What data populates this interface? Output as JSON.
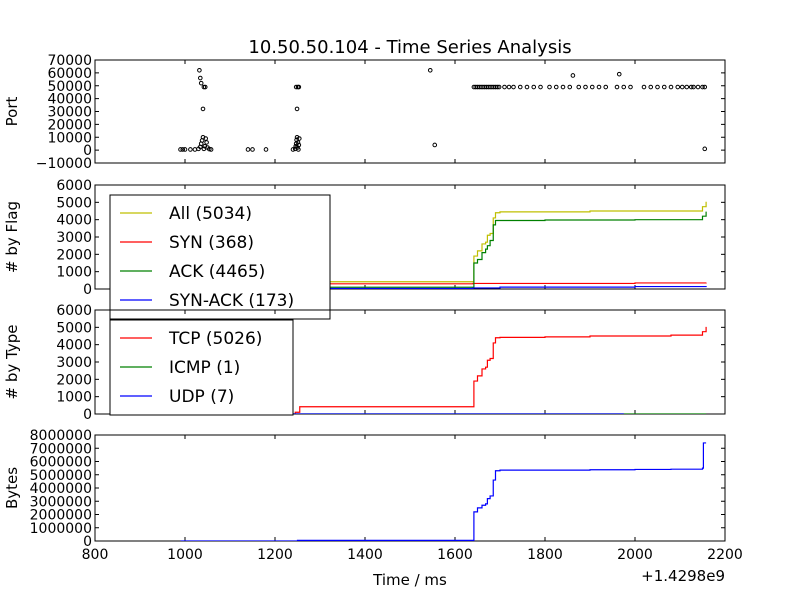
{
  "figure": {
    "title": "10.50.50.104 - Time Series Analysis",
    "xlabel": "Time / ms",
    "offset_text": "+1.4298e9",
    "xlim": [
      800,
      2200
    ],
    "xticks": [
      "800",
      "1000",
      "1200",
      "1400",
      "1600",
      "1800",
      "2000",
      "2200"
    ]
  },
  "chart_data": [
    {
      "type": "scatter",
      "ylabel": "Port",
      "ylim": [
        -10000,
        70000
      ],
      "yticks": [
        "−10000",
        "0",
        "10000",
        "20000",
        "30000",
        "40000",
        "50000",
        "60000",
        "70000"
      ],
      "points": [
        [
          990,
          500
        ],
        [
          995,
          500
        ],
        [
          1000,
          500
        ],
        [
          1012,
          500
        ],
        [
          1022,
          500
        ],
        [
          1030,
          1000
        ],
        [
          1034,
          2500
        ],
        [
          1036,
          5000
        ],
        [
          1038,
          7500
        ],
        [
          1040,
          10000
        ],
        [
          1042,
          1000
        ],
        [
          1044,
          3000
        ],
        [
          1046,
          9000
        ],
        [
          1048,
          6000
        ],
        [
          1050,
          2000
        ],
        [
          1054,
          800
        ],
        [
          1058,
          500
        ],
        [
          1032,
          62000
        ],
        [
          1034,
          56000
        ],
        [
          1036,
          52000
        ],
        [
          1040,
          32000
        ],
        [
          1042,
          49000
        ],
        [
          1045,
          49000
        ],
        [
          1140,
          500
        ],
        [
          1150,
          500
        ],
        [
          1180,
          500
        ],
        [
          1240,
          500
        ],
        [
          1245,
          1000
        ],
        [
          1246,
          3000
        ],
        [
          1247,
          5000
        ],
        [
          1248,
          8000
        ],
        [
          1249,
          10000
        ],
        [
          1250,
          2000
        ],
        [
          1251,
          6000
        ],
        [
          1252,
          500
        ],
        [
          1253,
          4000
        ],
        [
          1254,
          9000
        ],
        [
          1247,
          49000
        ],
        [
          1249,
          32000
        ],
        [
          1251,
          49000
        ],
        [
          1253,
          49000
        ],
        [
          1545,
          62000
        ],
        [
          1555,
          4000
        ],
        [
          1642,
          49000
        ],
        [
          1646,
          49000
        ],
        [
          1650,
          49000
        ],
        [
          1654,
          49000
        ],
        [
          1658,
          49000
        ],
        [
          1662,
          49000
        ],
        [
          1666,
          49000
        ],
        [
          1670,
          49000
        ],
        [
          1674,
          49000
        ],
        [
          1678,
          49000
        ],
        [
          1682,
          49000
        ],
        [
          1686,
          49000
        ],
        [
          1690,
          49000
        ],
        [
          1694,
          49000
        ],
        [
          1698,
          49000
        ],
        [
          1710,
          49000
        ],
        [
          1720,
          49000
        ],
        [
          1730,
          49000
        ],
        [
          1745,
          49000
        ],
        [
          1760,
          49000
        ],
        [
          1775,
          49000
        ],
        [
          1790,
          49000
        ],
        [
          1810,
          49000
        ],
        [
          1825,
          49000
        ],
        [
          1840,
          49000
        ],
        [
          1855,
          49000
        ],
        [
          1862,
          58000
        ],
        [
          1875,
          49000
        ],
        [
          1890,
          49000
        ],
        [
          1905,
          49000
        ],
        [
          1920,
          49000
        ],
        [
          1935,
          49000
        ],
        [
          1960,
          49000
        ],
        [
          1965,
          59000
        ],
        [
          1975,
          49000
        ],
        [
          1990,
          49000
        ],
        [
          2020,
          49000
        ],
        [
          2035,
          49000
        ],
        [
          2050,
          49000
        ],
        [
          2065,
          49000
        ],
        [
          2080,
          49000
        ],
        [
          2095,
          49000
        ],
        [
          2105,
          49000
        ],
        [
          2115,
          49000
        ],
        [
          2125,
          49000
        ],
        [
          2130,
          49000
        ],
        [
          2140,
          49000
        ],
        [
          2150,
          49000
        ],
        [
          2155,
          49000
        ],
        [
          2155,
          1000
        ]
      ]
    },
    {
      "type": "line",
      "ylabel": "# by Flag",
      "ylim": [
        0,
        6000
      ],
      "yticks": [
        "0",
        "1000",
        "2000",
        "3000",
        "4000",
        "5000",
        "6000"
      ],
      "legend_placement": "upper-left",
      "series": [
        {
          "name": "All (5034)",
          "color": "#bfbf00",
          "x": [
            990,
            1250,
            1640,
            1642,
            1650,
            1660,
            1668,
            1672,
            1678,
            1685,
            1690,
            1700,
            1800,
            1900,
            2000,
            2080,
            2150,
            2158
          ],
          "y": [
            0,
            420,
            420,
            1900,
            2200,
            2600,
            2700,
            3100,
            3200,
            4100,
            4400,
            4450,
            4450,
            4500,
            4500,
            4500,
            4750,
            5034
          ]
        },
        {
          "name": "SYN (368)",
          "color": "#ff0000",
          "x": [
            990,
            1000,
            1250,
            1260,
            1640,
            2000,
            2158
          ],
          "y": [
            0,
            200,
            250,
            300,
            320,
            350,
            368
          ]
        },
        {
          "name": "ACK (4465)",
          "color": "#008000",
          "x": [
            990,
            1250,
            1640,
            1642,
            1650,
            1660,
            1668,
            1672,
            1678,
            1685,
            1690,
            1700,
            1800,
            1900,
            2000,
            2080,
            2150,
            2158
          ],
          "y": [
            0,
            100,
            100,
            1500,
            1700,
            2100,
            2300,
            2500,
            2800,
            3700,
            3950,
            3950,
            3980,
            3980,
            4000,
            4000,
            4200,
            4465
          ]
        },
        {
          "name": "SYN-ACK (173)",
          "color": "#0000ff",
          "x": [
            990,
            1250,
            1640,
            1700,
            2000,
            2158
          ],
          "y": [
            0,
            30,
            60,
            110,
            140,
            173
          ]
        }
      ]
    },
    {
      "type": "line",
      "ylabel": "# by Type",
      "ylim": [
        0,
        6000
      ],
      "yticks": [
        "0",
        "1000",
        "2000",
        "3000",
        "4000",
        "5000",
        "6000"
      ],
      "legend_placement": "upper-left",
      "series": [
        {
          "name": "TCP (5026)",
          "color": "#ff0000",
          "x": [
            990,
            1245,
            1255,
            1640,
            1642,
            1650,
            1660,
            1668,
            1672,
            1678,
            1685,
            1690,
            1700,
            1800,
            1900,
            2000,
            2080,
            2150,
            2158
          ],
          "y": [
            0,
            100,
            420,
            420,
            1900,
            2200,
            2600,
            2700,
            3100,
            3200,
            4100,
            4400,
            4420,
            4450,
            4500,
            4500,
            4550,
            4750,
            5026
          ]
        },
        {
          "name": "ICMP (1)",
          "color": "#008000",
          "x": [
            990,
            2158
          ],
          "y": [
            0,
            1
          ]
        },
        {
          "name": "UDP (7)",
          "color": "#0000ff",
          "x": [
            990,
            1975
          ],
          "y": [
            0,
            7
          ]
        }
      ]
    },
    {
      "type": "line",
      "ylabel": "Bytes",
      "ylim": [
        0,
        8000000
      ],
      "yticks": [
        "0",
        "1000000",
        "2000000",
        "3000000",
        "4000000",
        "5000000",
        "6000000",
        "7000000",
        "8000000"
      ],
      "series": [
        {
          "color": "#0000ff",
          "x": [
            990,
            1250,
            1640,
            1642,
            1650,
            1660,
            1668,
            1672,
            1678,
            1685,
            1690,
            1700,
            1800,
            1900,
            2000,
            2080,
            2150,
            2152,
            2158
          ],
          "y": [
            0,
            50000,
            50000,
            2200000,
            2500000,
            2700000,
            2800000,
            3200000,
            3400000,
            4600000,
            5300000,
            5350000,
            5350000,
            5380000,
            5400000,
            5420000,
            5500000,
            7400000,
            7400000
          ]
        }
      ]
    }
  ]
}
